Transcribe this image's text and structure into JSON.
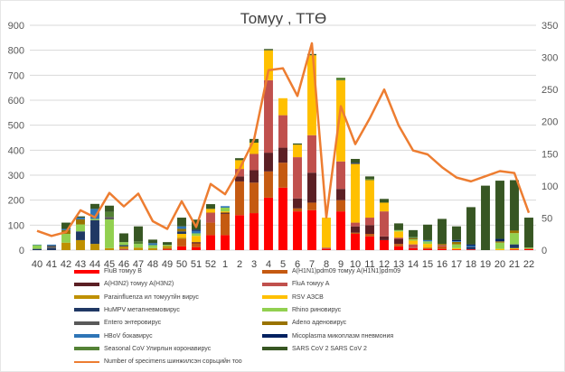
{
  "chart_data": {
    "type": "bar",
    "stacked": true,
    "title": "Томуу , ТТӨ",
    "categories": [
      "40",
      "41",
      "42",
      "43",
      "44",
      "45",
      "46",
      "47",
      "48",
      "49",
      "50",
      "51",
      "52",
      "1",
      "2",
      "3",
      "4",
      "5",
      "6",
      "7",
      "8",
      "9",
      "10",
      "11",
      "12",
      "13",
      "14",
      "15",
      "16",
      "17",
      "18",
      "19",
      "20",
      "21",
      "22"
    ],
    "y_left": {
      "min": 0,
      "max": 900,
      "ticks": [
        0,
        100,
        200,
        300,
        400,
        500,
        600,
        700,
        800,
        900
      ]
    },
    "y_right": {
      "min": 0,
      "max": 350,
      "ticks": [
        0,
        50,
        100,
        150,
        200,
        250,
        300,
        350
      ]
    },
    "grid": true,
    "legend_position": "bottom",
    "series": [
      {
        "name": "FluB томуу B",
        "color": "#FF0000",
        "values": [
          0,
          0,
          0,
          0,
          0,
          0,
          0,
          0,
          0,
          3,
          15,
          12,
          60,
          60,
          140,
          148,
          210,
          250,
          155,
          160,
          5,
          155,
          65,
          55,
          40,
          15,
          8,
          5,
          5,
          3,
          3,
          0,
          0,
          3,
          5
        ]
      },
      {
        "name": "A(H1N1)pdm09 томуу A(H1N1)pdm09",
        "color": "#C55A11",
        "values": [
          0,
          0,
          0,
          0,
          0,
          0,
          0,
          0,
          0,
          5,
          30,
          15,
          50,
          85,
          135,
          122,
          105,
          100,
          12,
          30,
          0,
          45,
          5,
          10,
          0,
          10,
          0,
          5,
          10,
          0,
          0,
          0,
          0,
          0,
          0
        ]
      },
      {
        "name": "A(H3N2) томуу A(H3N2)",
        "color": "#5B1F24",
        "values": [
          0,
          0,
          0,
          0,
          0,
          0,
          0,
          0,
          0,
          0,
          0,
          5,
          0,
          5,
          20,
          50,
          75,
          60,
          40,
          120,
          0,
          45,
          25,
          35,
          15,
          20,
          0,
          0,
          0,
          0,
          0,
          0,
          0,
          0,
          0
        ]
      },
      {
        "name": "FluA томуу A",
        "color": "#C0504D",
        "values": [
          0,
          0,
          0,
          0,
          0,
          0,
          5,
          0,
          0,
          0,
          0,
          0,
          40,
          0,
          30,
          65,
          290,
          130,
          165,
          150,
          5,
          110,
          15,
          30,
          100,
          5,
          15,
          0,
          5,
          0,
          0,
          0,
          0,
          0,
          0
        ]
      },
      {
        "name": "Parainfluenza  ил томуутйн вирус",
        "color": "#BF9000",
        "values": [
          0,
          0,
          30,
          40,
          25,
          8,
          10,
          10,
          8,
          8,
          5,
          0,
          0,
          0,
          0,
          0,
          0,
          0,
          0,
          0,
          0,
          0,
          0,
          0,
          0,
          0,
          0,
          0,
          0,
          0,
          0,
          0,
          0,
          0,
          0
        ]
      },
      {
        "name": "RSV АЗСВ",
        "color": "#FFC000",
        "values": [
          0,
          0,
          0,
          0,
          0,
          0,
          0,
          0,
          0,
          0,
          15,
          25,
          15,
          5,
          35,
          45,
          120,
          68,
          50,
          320,
          120,
          325,
          235,
          150,
          35,
          25,
          15,
          15,
          0,
          5,
          0,
          0,
          5,
          5,
          0
        ]
      },
      {
        "name": "HuMPV метапневмовирус",
        "color": "#203864",
        "values": [
          5,
          8,
          0,
          35,
          95,
          0,
          5,
          0,
          0,
          0,
          10,
          0,
          0,
          0,
          0,
          0,
          0,
          0,
          0,
          0,
          0,
          0,
          5,
          0,
          0,
          0,
          0,
          0,
          0,
          0,
          10,
          0,
          0,
          15,
          0
        ]
      },
      {
        "name": "Rhino  риновирус",
        "color": "#92D050",
        "values": [
          15,
          0,
          35,
          28,
          5,
          115,
          12,
          15,
          12,
          5,
          0,
          10,
          0,
          15,
          0,
          0,
          0,
          0,
          0,
          0,
          0,
          0,
          0,
          0,
          0,
          5,
          5,
          10,
          0,
          15,
          0,
          0,
          25,
          45,
          5
        ]
      },
      {
        "name": "Entero  энтеровирус",
        "color": "#595959",
        "values": [
          0,
          10,
          0,
          0,
          0,
          10,
          0,
          0,
          0,
          0,
          0,
          0,
          0,
          0,
          0,
          0,
          0,
          0,
          0,
          0,
          0,
          0,
          0,
          0,
          0,
          0,
          0,
          0,
          0,
          0,
          0,
          0,
          0,
          0,
          0
        ]
      },
      {
        "name": "Adeno  аденовирус",
        "color": "#997300",
        "values": [
          0,
          0,
          15,
          20,
          0,
          0,
          0,
          0,
          0,
          0,
          10,
          0,
          0,
          0,
          0,
          0,
          0,
          0,
          0,
          0,
          0,
          0,
          0,
          0,
          0,
          0,
          5,
          0,
          5,
          10,
          0,
          0,
          5,
          10,
          0
        ]
      },
      {
        "name": "HBoV бокавирус",
        "color": "#2E75B6",
        "values": [
          2,
          4,
          5,
          7,
          40,
          0,
          0,
          0,
          8,
          0,
          10,
          10,
          0,
          6,
          0,
          0,
          0,
          0,
          0,
          0,
          0,
          0,
          0,
          0,
          0,
          0,
          0,
          5,
          0,
          3,
          5,
          0,
          0,
          0,
          0
        ]
      },
      {
        "name": "Micoplasma микоплазм пневмония",
        "color": "#002060",
        "values": [
          0,
          0,
          0,
          0,
          0,
          0,
          0,
          0,
          0,
          0,
          0,
          5,
          0,
          0,
          0,
          0,
          0,
          0,
          0,
          0,
          0,
          0,
          0,
          0,
          0,
          0,
          0,
          0,
          0,
          5,
          5,
          0,
          10,
          0,
          0
        ]
      },
      {
        "name": "Seasonal CoV Улирлын коронавирус",
        "color": "#548235",
        "values": [
          0,
          0,
          0,
          0,
          0,
          20,
          0,
          10,
          0,
          0,
          0,
          0,
          0,
          0,
          0,
          0,
          0,
          0,
          0,
          0,
          0,
          10,
          0,
          5,
          0,
          0,
          5,
          0,
          0,
          0,
          0,
          0,
          0,
          0,
          0
        ]
      },
      {
        "name": "SARS CoV 2 SARS CoV 2",
        "color": "#375623",
        "values": [
          0,
          0,
          25,
          5,
          20,
          25,
          35,
          60,
          14,
          11,
          35,
          40,
          19,
          0,
          8,
          15,
          5,
          0,
          5,
          5,
          0,
          0,
          15,
          10,
          15,
          27,
          27,
          62,
          100,
          54,
          149,
          258,
          233,
          202,
          120
        ]
      }
    ],
    "line": {
      "name": "Number of specimens шинжилсэн сорьцийн  тоо",
      "color": "#ED7D31",
      "axis": "right",
      "values": [
        30,
        22,
        28,
        62,
        51,
        89,
        68,
        88,
        45,
        33,
        76,
        36,
        103,
        87,
        126,
        172,
        280,
        283,
        240,
        322,
        51,
        224,
        165,
        205,
        250,
        194,
        155,
        149,
        129,
        113,
        107,
        115,
        123,
        120,
        58
      ]
    }
  }
}
